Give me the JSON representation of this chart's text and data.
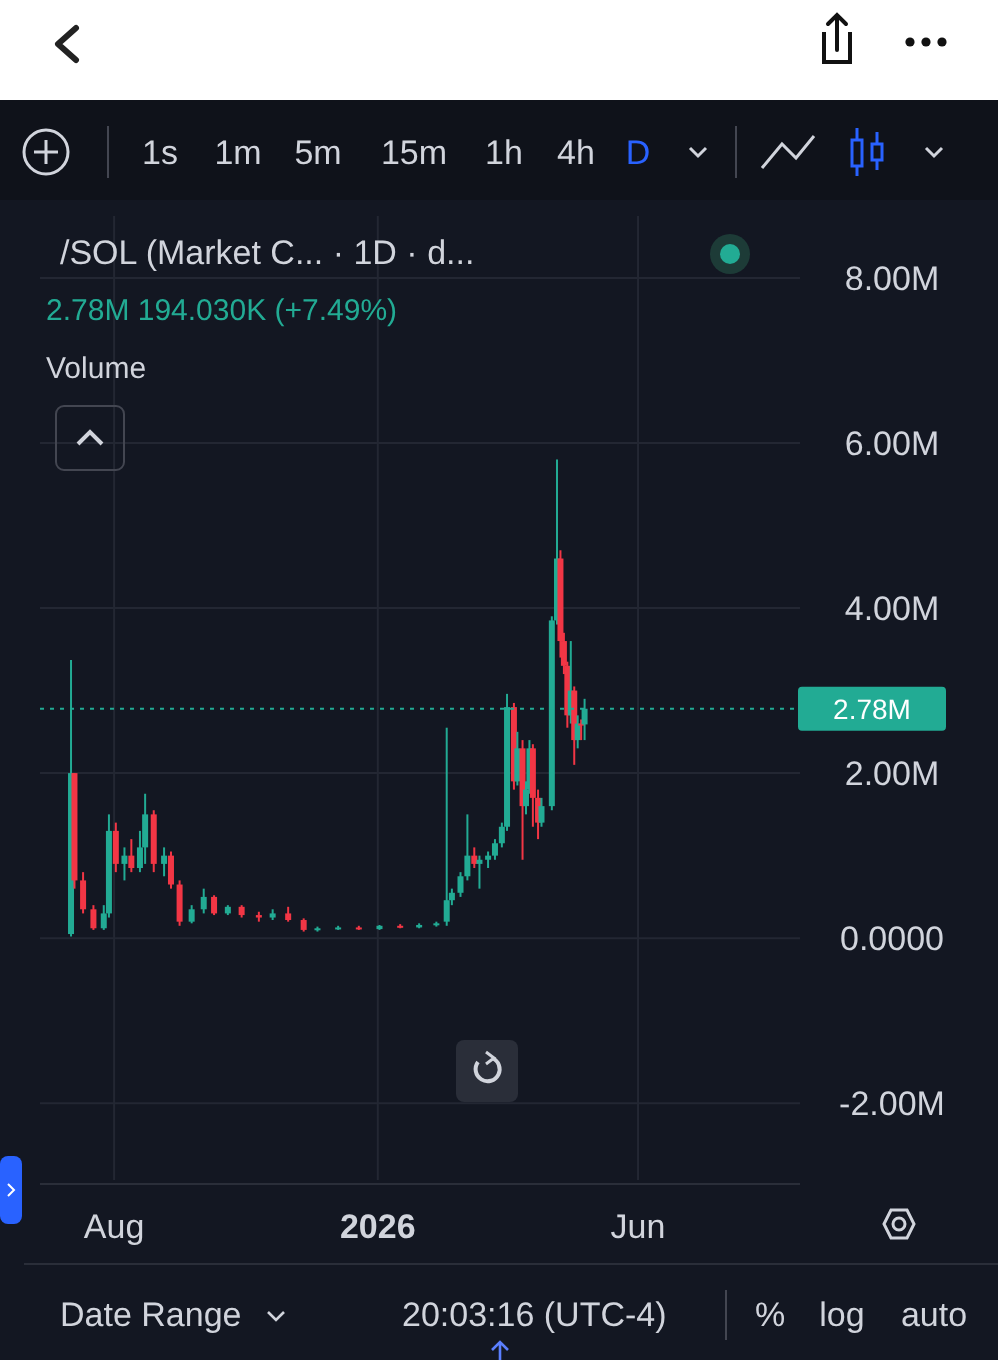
{
  "chart_data": {
    "type": "candlestick",
    "title": "/SOL (Market C...   · 1D · d...",
    "subtitle": "2.78M  194.030K (+7.49%)",
    "annotations": [
      "Volume",
      "1s",
      "1m",
      "5m",
      "15m",
      "1h",
      "4h",
      "D",
      "Date Range",
      "20:03:16 (UTC-4)",
      "%",
      "log",
      "auto"
    ],
    "x": [
      "2025-07-07",
      "2025-07-09",
      "2025-07-14",
      "2025-07-20",
      "2025-07-26",
      "2025-07-29",
      "2025-08-02",
      "2025-08-07",
      "2025-08-11",
      "2025-08-16",
      "2025-08-19",
      "2025-08-24",
      "2025-08-30",
      "2025-09-03",
      "2025-09-08",
      "2025-09-15",
      "2025-09-22",
      "2025-09-28",
      "2025-10-06",
      "2025-10-14",
      "2025-10-24",
      "2025-11-01",
      "2025-11-10",
      "2025-11-19",
      "2025-11-27",
      "2025-12-09",
      "2025-12-21",
      "2026-01-02",
      "2026-01-14",
      "2026-01-25",
      "2026-02-04",
      "2026-02-10",
      "2026-02-13",
      "2026-02-18",
      "2026-02-22",
      "2026-02-26",
      "2026-03-01",
      "2026-03-06",
      "2026-03-10",
      "2026-03-14",
      "2026-03-17",
      "2026-03-21",
      "2026-03-23",
      "2026-03-26",
      "2026-03-28",
      "2026-03-30",
      "2026-04-01",
      "2026-04-04",
      "2026-04-06",
      "2026-04-12",
      "2026-04-15",
      "2026-04-17",
      "2026-04-19",
      "2026-04-21",
      "2026-04-23",
      "2026-04-25",
      "2026-04-27",
      "2026-04-29",
      "2026-05-01"
    ],
    "ohlc": [
      [
        0.05,
        3.37,
        0.02,
        2.0
      ],
      [
        2.0,
        2.0,
        0.6,
        0.7
      ],
      [
        0.7,
        0.8,
        0.3,
        0.35
      ],
      [
        0.35,
        0.4,
        0.1,
        0.12
      ],
      [
        0.12,
        0.4,
        0.1,
        0.3
      ],
      [
        0.3,
        1.5,
        0.25,
        1.3
      ],
      [
        1.3,
        1.4,
        0.8,
        0.9
      ],
      [
        0.9,
        1.1,
        0.7,
        1.0
      ],
      [
        1.0,
        1.2,
        0.8,
        0.85
      ],
      [
        0.85,
        1.3,
        0.8,
        1.1
      ],
      [
        1.1,
        1.75,
        0.9,
        1.5
      ],
      [
        1.5,
        1.55,
        0.8,
        0.9
      ],
      [
        0.9,
        1.1,
        0.75,
        1.0
      ],
      [
        1.0,
        1.05,
        0.6,
        0.65
      ],
      [
        0.65,
        0.7,
        0.15,
        0.2
      ],
      [
        0.2,
        0.4,
        0.18,
        0.35
      ],
      [
        0.35,
        0.6,
        0.3,
        0.5
      ],
      [
        0.5,
        0.52,
        0.28,
        0.3
      ],
      [
        0.3,
        0.4,
        0.28,
        0.38
      ],
      [
        0.38,
        0.4,
        0.25,
        0.28
      ],
      [
        0.28,
        0.32,
        0.2,
        0.25
      ],
      [
        0.25,
        0.35,
        0.22,
        0.3
      ],
      [
        0.3,
        0.38,
        0.2,
        0.22
      ],
      [
        0.22,
        0.24,
        0.08,
        0.1
      ],
      [
        0.1,
        0.14,
        0.08,
        0.12
      ],
      [
        0.12,
        0.15,
        0.1,
        0.13
      ],
      [
        0.13,
        0.15,
        0.1,
        0.11
      ],
      [
        0.11,
        0.16,
        0.1,
        0.15
      ],
      [
        0.15,
        0.17,
        0.12,
        0.13
      ],
      [
        0.13,
        0.18,
        0.12,
        0.16
      ],
      [
        0.16,
        0.2,
        0.14,
        0.18
      ],
      [
        0.2,
        2.55,
        0.15,
        0.46
      ],
      [
        0.46,
        0.6,
        0.4,
        0.55
      ],
      [
        0.55,
        0.8,
        0.5,
        0.75
      ],
      [
        0.75,
        1.5,
        0.7,
        1.0
      ],
      [
        1.0,
        1.1,
        0.85,
        0.9
      ],
      [
        0.9,
        1.0,
        0.6,
        0.95
      ],
      [
        0.95,
        1.05,
        0.85,
        1.0
      ],
      [
        1.0,
        1.2,
        0.95,
        1.15
      ],
      [
        1.15,
        1.4,
        1.1,
        1.35
      ],
      [
        1.35,
        2.96,
        1.3,
        2.8
      ],
      [
        2.8,
        2.85,
        1.8,
        1.9
      ],
      [
        1.9,
        2.5,
        1.85,
        2.3
      ],
      [
        2.3,
        2.4,
        0.95,
        1.6
      ],
      [
        1.6,
        1.9,
        1.5,
        1.8
      ],
      [
        1.8,
        2.4,
        1.75,
        2.3
      ],
      [
        2.3,
        2.35,
        1.35,
        1.7
      ],
      [
        1.7,
        1.8,
        1.2,
        1.4
      ],
      [
        1.4,
        1.7,
        1.35,
        1.6
      ],
      [
        1.6,
        3.9,
        1.55,
        3.85
      ],
      [
        3.85,
        5.8,
        3.8,
        4.6
      ],
      [
        4.6,
        4.7,
        3.4,
        3.6
      ],
      [
        3.6,
        3.7,
        3.2,
        3.3
      ],
      [
        3.3,
        3.35,
        2.55,
        2.7
      ],
      [
        2.7,
        3.6,
        2.6,
        3.0
      ],
      [
        3.0,
        3.05,
        2.1,
        2.4
      ],
      [
        2.4,
        2.7,
        2.3,
        2.6
      ],
      [
        2.6,
        2.65,
        2.4,
        2.59
      ],
      [
        2.59,
        2.9,
        2.4,
        2.78
      ]
    ],
    "xlim": [
      "2025-06-19",
      "2026-09-03"
    ],
    "xticks": [
      {
        "value": "2025-08-01",
        "label": "Aug"
      },
      {
        "value": "2026-01-01",
        "label": "2026"
      },
      {
        "value": "2026-06-01",
        "label": "Jun"
      }
    ],
    "ylim": [
      -2.93,
      8.75
    ],
    "yticks": [
      {
        "value": -2,
        "label": "-2.00M"
      },
      {
        "value": 0,
        "label": "0.0000"
      },
      {
        "value": 2,
        "label": "2.00M"
      },
      {
        "value": 4,
        "label": "4.00M"
      },
      {
        "value": 6,
        "label": "6.00M"
      },
      {
        "value": 8,
        "label": "8.00M"
      }
    ],
    "ref_lines": [
      {
        "axis": "y",
        "value": 2.78,
        "label": "2.78M",
        "color": "#22ab94",
        "line_style": "dotted"
      }
    ],
    "grid": true
  }
}
